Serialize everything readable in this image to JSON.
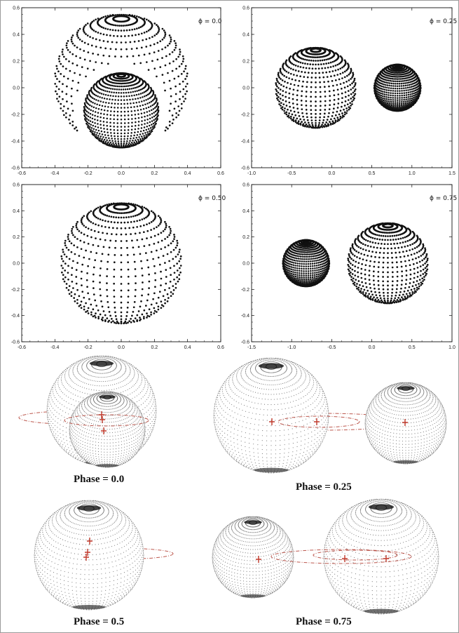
{
  "top_panels": [
    {
      "label": "ϕ = 0.0",
      "x_range": [
        -0.6,
        0.6
      ],
      "y_range": [
        -0.6,
        0.6
      ],
      "x_ticks": [
        -0.6,
        -0.4,
        -0.2,
        0.0,
        0.2,
        0.4,
        0.6
      ],
      "x_tick_labels": [
        "-0.6",
        "-0.4",
        "-0.2",
        "0.0",
        "0.2",
        "0.4",
        "0.6"
      ],
      "y_ticks": [
        -0.6,
        -0.4,
        -0.2,
        0.0,
        0.2,
        0.4,
        0.6
      ],
      "y_tick_labels": [
        "-0.6",
        "-0.4",
        "-0.2",
        "0.0",
        "0.2",
        "0.4",
        "0.6"
      ],
      "bodies": [
        {
          "cx": 0.0,
          "cy": 0.05,
          "r": 0.5,
          "density": "sparse"
        },
        {
          "cx": 0.0,
          "cy": -0.17,
          "r": 0.28,
          "density": "dense"
        }
      ]
    },
    {
      "label": "ϕ = 0.25",
      "x_range": [
        -1.0,
        1.5
      ],
      "y_range": [
        -0.6,
        0.6
      ],
      "x_ticks": [
        -1.0,
        -0.5,
        0.0,
        0.5,
        1.0,
        1.5
      ],
      "x_tick_labels": [
        "-1.0",
        "-0.5",
        "0.0",
        "0.5",
        "1.0",
        "1.5"
      ],
      "y_ticks": [
        -0.6,
        -0.4,
        -0.2,
        0.0,
        0.2,
        0.4,
        0.6
      ],
      "y_tick_labels": [
        "-0.6",
        "-0.4",
        "-0.2",
        "0.0",
        "0.2",
        "0.4",
        "0.6"
      ],
      "bodies": [
        {
          "cx": -0.2,
          "cy": 0.0,
          "r": 0.5,
          "density": "sparse"
        },
        {
          "cx": 0.82,
          "cy": 0.0,
          "r": 0.29,
          "density": "dense"
        }
      ]
    },
    {
      "label": "ϕ = 0.50",
      "x_range": [
        -0.6,
        0.6
      ],
      "y_range": [
        -0.6,
        0.6
      ],
      "x_ticks": [
        -0.6,
        -0.4,
        -0.2,
        0.0,
        0.2,
        0.4,
        0.6
      ],
      "x_tick_labels": [
        "-0.6",
        "-0.4",
        "-0.2",
        "0.0",
        "0.2",
        "0.4",
        "0.6"
      ],
      "y_ticks": [
        -0.6,
        -0.4,
        -0.2,
        0.0,
        0.2,
        0.4,
        0.6
      ],
      "y_tick_labels": [
        "-0.6",
        "-0.4",
        "-0.2",
        "0.0",
        "0.2",
        "0.4",
        "0.6"
      ],
      "bodies": [
        {
          "cx": 0.0,
          "cy": 0.0,
          "r": 0.46,
          "density": "sparse"
        }
      ]
    },
    {
      "label": "ϕ = 0.75",
      "x_range": [
        -1.5,
        1.0
      ],
      "y_range": [
        -0.6,
        0.6
      ],
      "x_ticks": [
        -1.5,
        -1.0,
        -0.5,
        0.0,
        0.5,
        1.0
      ],
      "x_tick_labels": [
        "-1.5",
        "-1.0",
        "-0.5",
        "0.0",
        "0.5",
        "1.0"
      ],
      "y_ticks": [
        -0.6,
        -0.4,
        -0.2,
        0.0,
        0.2,
        0.4,
        0.6
      ],
      "y_tick_labels": [
        "-0.6",
        "-0.4",
        "-0.2",
        "0.0",
        "0.2",
        "0.4",
        "0.6"
      ],
      "bodies": [
        {
          "cx": -0.82,
          "cy": 0.0,
          "r": 0.29,
          "density": "dense"
        },
        {
          "cx": 0.2,
          "cy": 0.0,
          "r": 0.5,
          "density": "sparse"
        }
      ]
    }
  ],
  "bottom_panels": [
    {
      "caption": "Phase = 0.0"
    },
    {
      "caption": "Phase = 0.25"
    },
    {
      "caption": "Phase = 0.5"
    },
    {
      "caption": "Phase = 0.75"
    }
  ],
  "colors": {
    "dots": "#111111",
    "bottom_dots": "#555555",
    "orbit": "#b03a2e",
    "marker": "#c0392b",
    "frame": "#9a9a9a"
  }
}
